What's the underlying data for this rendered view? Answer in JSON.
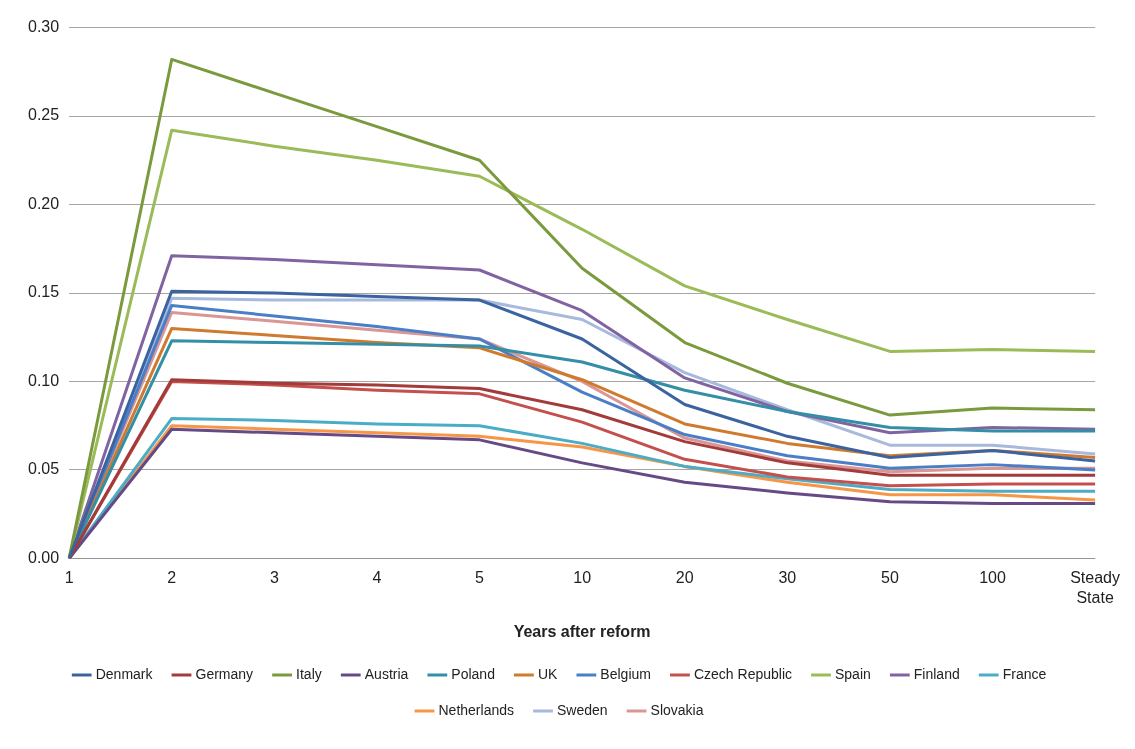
{
  "chart_data": {
    "type": "line",
    "xlabel": "Years after reform",
    "categories": [
      "1",
      "2",
      "3",
      "4",
      "5",
      "10",
      "20",
      "30",
      "50",
      "100",
      "Steady State"
    ],
    "ylim": [
      0,
      0.3
    ],
    "yticks": [
      {
        "value": 0,
        "label": "0.00"
      },
      {
        "value": 0.05,
        "label": "0.05"
      },
      {
        "value": 0.1,
        "label": "0.10"
      },
      {
        "value": 0.15,
        "label": "0.15"
      },
      {
        "value": 0.2,
        "label": "0.20"
      },
      {
        "value": 0.25,
        "label": "0.25"
      },
      {
        "value": 0.3,
        "label": "0.30"
      }
    ],
    "grid": "y",
    "legend": "bottom",
    "marker": "none",
    "line_style": "solid",
    "series": [
      {
        "name": "Denmark",
        "color": "#3a63a0",
        "values": [
          0,
          0.151,
          0.15,
          0.148,
          0.146,
          0.124,
          0.087,
          0.069,
          0.057,
          0.061,
          0.055
        ]
      },
      {
        "name": "Germany",
        "color": "#a23b3a",
        "values": [
          0,
          0.101,
          0.099,
          0.098,
          0.096,
          0.084,
          0.066,
          0.054,
          0.047,
          0.047,
          0.047
        ]
      },
      {
        "name": "Italy",
        "color": "#7a9a3d",
        "values": [
          0,
          0.282,
          0.263,
          0.244,
          0.225,
          0.164,
          0.122,
          0.099,
          0.081,
          0.085,
          0.084
        ]
      },
      {
        "name": "Austria",
        "color": "#664a86",
        "values": [
          0,
          0.073,
          0.071,
          0.069,
          0.067,
          0.054,
          0.043,
          0.037,
          0.032,
          0.031,
          0.031
        ]
      },
      {
        "name": "Poland",
        "color": "#338fa6",
        "values": [
          0,
          0.123,
          0.122,
          0.121,
          0.12,
          0.111,
          0.095,
          0.083,
          0.074,
          0.072,
          0.072
        ]
      },
      {
        "name": "UK",
        "color": "#d07a30",
        "values": [
          0,
          0.13,
          0.126,
          0.122,
          0.119,
          0.101,
          0.076,
          0.065,
          0.058,
          0.061,
          0.057
        ]
      },
      {
        "name": "Belgium",
        "color": "#4a7fc8",
        "values": [
          0,
          0.143,
          0.137,
          0.131,
          0.124,
          0.094,
          0.07,
          0.058,
          0.051,
          0.053,
          0.05
        ]
      },
      {
        "name": "Czech Republic",
        "color": "#c4504d",
        "values": [
          0,
          0.1,
          0.098,
          0.095,
          0.093,
          0.077,
          0.056,
          0.046,
          0.041,
          0.042,
          0.042
        ]
      },
      {
        "name": "Spain",
        "color": "#9bbb59",
        "values": [
          0,
          0.242,
          0.233,
          0.225,
          0.216,
          0.186,
          0.154,
          0.135,
          0.117,
          0.118,
          0.117
        ]
      },
      {
        "name": "Finland",
        "color": "#8064a2",
        "values": [
          0,
          0.171,
          0.169,
          0.166,
          0.163,
          0.14,
          0.102,
          0.083,
          0.071,
          0.074,
          0.073
        ]
      },
      {
        "name": "France",
        "color": "#4bacc6",
        "values": [
          0,
          0.079,
          0.078,
          0.076,
          0.075,
          0.065,
          0.052,
          0.045,
          0.039,
          0.038,
          0.038
        ]
      },
      {
        "name": "Netherlands",
        "color": "#f79646",
        "values": [
          0,
          0.075,
          0.073,
          0.071,
          0.069,
          0.063,
          0.052,
          0.043,
          0.036,
          0.036,
          0.033
        ]
      },
      {
        "name": "Sweden",
        "color": "#a7b9dc",
        "values": [
          0,
          0.147,
          0.146,
          0.146,
          0.146,
          0.135,
          0.105,
          0.084,
          0.064,
          0.064,
          0.059
        ]
      },
      {
        "name": "Slovakia",
        "color": "#d99694",
        "values": [
          0,
          0.139,
          0.134,
          0.129,
          0.124,
          0.1,
          0.068,
          0.055,
          0.049,
          0.051,
          0.051
        ]
      }
    ]
  }
}
